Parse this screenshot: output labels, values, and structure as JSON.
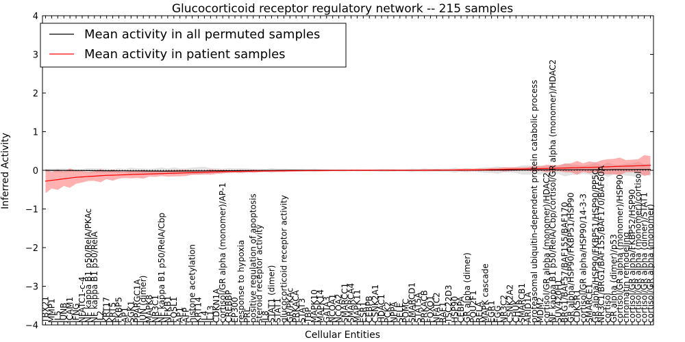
{
  "chart_data": {
    "type": "line",
    "title": "Glucocorticoid receptor regulatory network -- 215 samples",
    "xlabel": "Cellular Entities",
    "ylabel": "Inferred Activity",
    "ylim": [
      -4,
      4
    ],
    "yticks": [
      -4,
      -3,
      -2,
      -1,
      0,
      1,
      2,
      3,
      4
    ],
    "ytick_labels": [
      "−4",
      "−3",
      "−2",
      "−1",
      "0",
      "1",
      "2",
      "3",
      "4"
    ],
    "n_points": 100,
    "baseline": 0,
    "legend": {
      "position": "top-left",
      "entries": [
        {
          "label": "Mean activity in all permuted samples",
          "color": "#000000"
        },
        {
          "label": "Mean activity in patient samples",
          "color": "#ff0000"
        }
      ]
    },
    "series": [
      {
        "name": "Mean activity in all permuted samples",
        "color": "#000000",
        "band_color": "#b0b0b0",
        "keypoints": [
          [
            0,
            0.0
          ],
          [
            10,
            -0.01
          ],
          [
            20,
            -0.02
          ],
          [
            40,
            0.0
          ],
          [
            60,
            0.0
          ],
          [
            80,
            0.01
          ],
          [
            99,
            0.02
          ]
        ],
        "band_keypoints": [
          [
            0,
            0.05
          ],
          [
            12,
            0.08
          ],
          [
            25,
            0.12
          ],
          [
            30,
            0.08
          ],
          [
            50,
            0.03
          ],
          [
            70,
            0.07
          ],
          [
            80,
            0.15
          ],
          [
            90,
            0.2
          ],
          [
            99,
            0.22
          ]
        ]
      },
      {
        "name": "Mean activity in patient samples",
        "color": "#ff0000",
        "band_color": "#ff5050",
        "keypoints": [
          [
            0,
            -0.28
          ],
          [
            5,
            -0.18
          ],
          [
            10,
            -0.13
          ],
          [
            20,
            -0.08
          ],
          [
            30,
            -0.03
          ],
          [
            40,
            -0.01
          ],
          [
            50,
            0.0
          ],
          [
            60,
            0.0
          ],
          [
            70,
            0.01
          ],
          [
            80,
            0.04
          ],
          [
            90,
            0.08
          ],
          [
            99,
            0.13
          ]
        ],
        "band_keypoints": [
          [
            0,
            0.42
          ],
          [
            5,
            0.22
          ],
          [
            15,
            0.12
          ],
          [
            25,
            0.09
          ],
          [
            30,
            0.05
          ],
          [
            40,
            0.03
          ],
          [
            50,
            0.02
          ],
          [
            60,
            0.02
          ],
          [
            70,
            0.04
          ],
          [
            80,
            0.08
          ],
          [
            90,
            0.22
          ],
          [
            99,
            0.3
          ]
        ]
      }
    ],
    "x_labels": [
      "TBX21",
      "MMP1",
      "IL5",
      "JUNB",
      "ICAM1",
      "IFNG",
      "NFATC1-c-4",
      "NF kappa B1 p50/RelA/PKAc",
      "NF kappa B1 p50/RelA",
      "IL2",
      "KRT17",
      "KRT5",
      "FKBP5",
      "AP1",
      "SGK1",
      "PPARGC1A",
      "JUN (dimer)",
      "MAPK8",
      "NR3C1",
      "NF kappa B1 p50/RelA/Cbp",
      "NFKB1",
      "FOSL1",
      "AP1",
      "AFP",
      "histone acetylation",
      "KRT14",
      "IL4",
      "IL13",
      "CDKN1A",
      "cortisol/GR alpha (monomer)/AP-1",
      "CREBBP",
      "EP300",
      "response to hypoxia",
      "PRL",
      "positive regulation of apoptosis",
      "steroid receptor activity",
      "IL8",
      "STAT1 (dimer)",
      "STAT1",
      "glucocorticoid receptor activity",
      "GR/PKAc",
      "PRKACA",
      "STAT3",
      "TBP",
      "MAPK10",
      "MAPK14",
      "GATA3",
      "NCOA1",
      "NCOA2",
      "SMARCC1",
      "SMARCA4",
      "MAPK11",
      "ESR1",
      "CEBPB",
      "CSNK2A1",
      "HDAC1",
      "PCK2",
      "NPPA",
      "SELE",
      "POMC",
      "SMARCD1",
      "STAT5A",
      "PRKACB",
      "FOXO1",
      "NFATC2",
      "RAF1",
      "TSC22D3",
      "HSP90",
      "CEBPA",
      "GR alpha (dimer)",
      "POU2F1",
      "RELA",
      "MAPK cascade",
      "EGR1",
      "FGG",
      "NR3C2",
      "CSNK2A2",
      "CHUK",
      "SMARCB1",
      "ARID1A",
      "proteasomal ubiquitin-dependent protein catabolic process",
      "MDM2",
      "cortisol/GR alpha (monomer)/HDAC2",
      "NF kappa B1 p50/RelA/Cbp/cortisol/GR alpha (monomer)/HDAC2",
      "SUV420H1",
      "BRG1/BAF57/BAF155/BAF170",
      "GR alpha/HSP90/FKBP51/HSP90",
      "CDK5R1",
      "cortisol/GR alpha/HSP90/14-3-3",
      "SMARCE1",
      "GR alpha/HSP90/FKBP51/HSP90/PP5C",
      "NR3C1/BRG1/BAF155/BAF170/BAF60A",
      "cortisol",
      "GR alpha (dimer)/p53",
      "cortisol/GR alpha (monomer)/HSP90",
      "chromatin remodeling",
      "cortisol/GR alpha/FKBP52/HSP90",
      "cortisol/GR alpha (monomer)/cortisol",
      "cortisol/GR alpha (dimer)/STAT1",
      "cortisol/GR alpha (monomer)"
    ]
  }
}
